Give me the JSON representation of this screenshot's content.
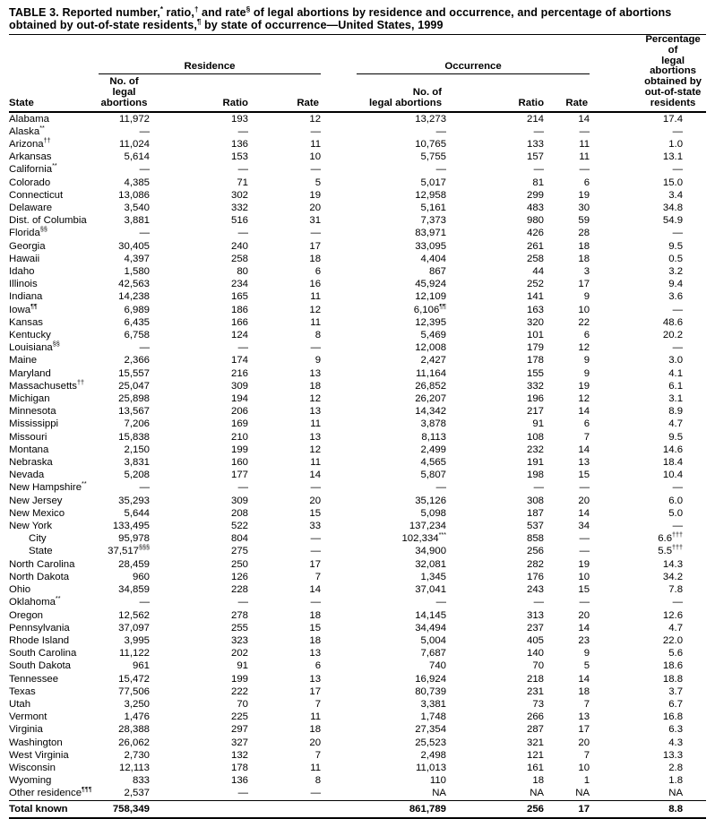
{
  "title": {
    "segments": [
      {
        "text": "TABLE 3. Reported number,"
      },
      {
        "sup": "*"
      },
      {
        "text": " ratio,"
      },
      {
        "sup": "†"
      },
      {
        "text": " and rate"
      },
      {
        "sup": "§"
      },
      {
        "text": " of legal abortions by residence and occurrence, and percentage of abortions obtained by out-of-state residents,"
      },
      {
        "sup": "¶"
      },
      {
        "text": " by state of occurrence—United States, 1999"
      }
    ]
  },
  "header": {
    "state_label": "State",
    "groups": [
      {
        "label": "Residence"
      },
      {
        "label": "Occurrence"
      }
    ],
    "sub": {
      "no": "No. of\nlegal abortions",
      "ratio": "Ratio",
      "rate": "Rate"
    },
    "pct": "Percentage of\nlegal abortions\nobtained by\nout-of-state\nresidents"
  },
  "rows": [
    {
      "state": "Alabama",
      "cells": [
        "11,972",
        "193",
        "12",
        "13,273",
        "214",
        "14",
        "17.4"
      ]
    },
    {
      "state": "Alaska",
      "state_sup": "**",
      "cells": [
        "—",
        "—",
        "—",
        "—",
        "—",
        "—",
        "—"
      ]
    },
    {
      "state": "Arizona",
      "state_sup": "††",
      "cells": [
        "11,024",
        "136",
        "11",
        "10,765",
        "133",
        "11",
        "1.0"
      ]
    },
    {
      "state": "Arkansas",
      "cells": [
        "5,614",
        "153",
        "10",
        "5,755",
        "157",
        "11",
        "13.1"
      ]
    },
    {
      "state": "California",
      "state_sup": "**",
      "cells": [
        "—",
        "—",
        "—",
        "—",
        "—",
        "—",
        "—"
      ]
    },
    {
      "state": "Colorado",
      "cells": [
        "4,385",
        "71",
        "5",
        "5,017",
        "81",
        "6",
        "15.0"
      ]
    },
    {
      "state": "Connecticut",
      "cells": [
        "13,086",
        "302",
        "19",
        "12,958",
        "299",
        "19",
        "3.4"
      ]
    },
    {
      "state": "Delaware",
      "cells": [
        "3,540",
        "332",
        "20",
        "5,161",
        "483",
        "30",
        "34.8"
      ]
    },
    {
      "state": "Dist. of Columbia",
      "cells": [
        "3,881",
        "516",
        "31",
        "7,373",
        "980",
        "59",
        "54.9"
      ]
    },
    {
      "state": "Florida",
      "state_sup": "§§",
      "cells": [
        "—",
        "—",
        "—",
        "83,971",
        "426",
        "28",
        "—"
      ]
    },
    {
      "state": "Georgia",
      "cells": [
        "30,405",
        "240",
        "17",
        "33,095",
        "261",
        "18",
        "9.5"
      ]
    },
    {
      "state": "Hawaii",
      "cells": [
        "4,397",
        "258",
        "18",
        "4,404",
        "258",
        "18",
        "0.5"
      ]
    },
    {
      "state": "Idaho",
      "cells": [
        "1,580",
        "80",
        "6",
        "867",
        "44",
        "3",
        "3.2"
      ]
    },
    {
      "state": "Illinois",
      "cells": [
        "42,563",
        "234",
        "16",
        "45,924",
        "252",
        "17",
        "9.4"
      ]
    },
    {
      "state": "Indiana",
      "cells": [
        "14,238",
        "165",
        "11",
        "12,109",
        "141",
        "9",
        "3.6"
      ]
    },
    {
      "state": "Iowa",
      "state_sup": "¶¶",
      "cells": [
        "6,989",
        "186",
        "12",
        {
          "v": "6,106",
          "sup": "¶¶"
        },
        "163",
        "10",
        "—"
      ]
    },
    {
      "state": "Kansas",
      "cells": [
        "6,435",
        "166",
        "11",
        "12,395",
        "320",
        "22",
        "48.6"
      ]
    },
    {
      "state": "Kentucky",
      "cells": [
        "6,758",
        "124",
        "8",
        "5,469",
        "101",
        "6",
        "20.2"
      ]
    },
    {
      "state": "Louisiana",
      "state_sup": "§§",
      "cells": [
        "—",
        "—",
        "—",
        "12,008",
        "179",
        "12",
        "—"
      ]
    },
    {
      "state": "Maine",
      "cells": [
        "2,366",
        "174",
        "9",
        "2,427",
        "178",
        "9",
        "3.0"
      ]
    },
    {
      "state": "Maryland",
      "cells": [
        "15,557",
        "216",
        "13",
        "11,164",
        "155",
        "9",
        "4.1"
      ]
    },
    {
      "state": "Massachusetts",
      "state_sup": "††",
      "cells": [
        "25,047",
        "309",
        "18",
        "26,852",
        "332",
        "19",
        "6.1"
      ]
    },
    {
      "state": "Michigan",
      "cells": [
        "25,898",
        "194",
        "12",
        "26,207",
        "196",
        "12",
        "3.1"
      ]
    },
    {
      "state": "Minnesota",
      "cells": [
        "13,567",
        "206",
        "13",
        "14,342",
        "217",
        "14",
        "8.9"
      ]
    },
    {
      "state": "Mississippi",
      "cells": [
        "7,206",
        "169",
        "11",
        "3,878",
        "91",
        "6",
        "4.7"
      ]
    },
    {
      "state": "Missouri",
      "cells": [
        "15,838",
        "210",
        "13",
        "8,113",
        "108",
        "7",
        "9.5"
      ]
    },
    {
      "state": "Montana",
      "cells": [
        "2,150",
        "199",
        "12",
        "2,499",
        "232",
        "14",
        "14.6"
      ]
    },
    {
      "state": "Nebraska",
      "cells": [
        "3,831",
        "160",
        "11",
        "4,565",
        "191",
        "13",
        "18.4"
      ]
    },
    {
      "state": "Nevada",
      "cells": [
        "5,208",
        "177",
        "14",
        "5,807",
        "198",
        "15",
        "10.4"
      ]
    },
    {
      "state": "New Hampshire",
      "state_sup": "**",
      "cells": [
        "—",
        "—",
        "—",
        "—",
        "—",
        "—",
        "—"
      ]
    },
    {
      "state": "New Jersey",
      "cells": [
        "35,293",
        "309",
        "20",
        "35,126",
        "308",
        "20",
        "6.0"
      ]
    },
    {
      "state": "New Mexico",
      "cells": [
        "5,644",
        "208",
        "15",
        "5,098",
        "187",
        "14",
        "5.0"
      ]
    },
    {
      "state": "New York",
      "cells": [
        "133,495",
        "522",
        "33",
        "137,234",
        "537",
        "34",
        "—"
      ]
    },
    {
      "state": "City",
      "indent": true,
      "cells": [
        "95,978",
        "804",
        "—",
        {
          "v": "102,334",
          "sup": "***"
        },
        "858",
        "—",
        {
          "v": "6.6",
          "sup": "†††"
        }
      ]
    },
    {
      "state": "State",
      "indent": true,
      "cells": [
        {
          "v": "37,517",
          "sup": "§§§"
        },
        "275",
        "—",
        "34,900",
        "256",
        "—",
        {
          "v": "5.5",
          "sup": "†††"
        }
      ]
    },
    {
      "state": "North Carolina",
      "cells": [
        "28,459",
        "250",
        "17",
        "32,081",
        "282",
        "19",
        "14.3"
      ]
    },
    {
      "state": "North Dakota",
      "cells": [
        "960",
        "126",
        "7",
        "1,345",
        "176",
        "10",
        "34.2"
      ]
    },
    {
      "state": "Ohio",
      "cells": [
        "34,859",
        "228",
        "14",
        "37,041",
        "243",
        "15",
        "7.8"
      ]
    },
    {
      "state": "Oklahoma",
      "state_sup": "**",
      "cells": [
        "—",
        "—",
        "—",
        "—",
        "—",
        "—",
        "—"
      ]
    },
    {
      "state": "Oregon",
      "cells": [
        "12,562",
        "278",
        "18",
        "14,145",
        "313",
        "20",
        "12.6"
      ]
    },
    {
      "state": "Pennsylvania",
      "cells": [
        "37,097",
        "255",
        "15",
        "34,494",
        "237",
        "14",
        "4.7"
      ]
    },
    {
      "state": "Rhode Island",
      "cells": [
        "3,995",
        "323",
        "18",
        "5,004",
        "405",
        "23",
        "22.0"
      ]
    },
    {
      "state": "South Carolina",
      "cells": [
        "11,122",
        "202",
        "13",
        "7,687",
        "140",
        "9",
        "5.6"
      ]
    },
    {
      "state": "South Dakota",
      "cells": [
        "961",
        "91",
        "6",
        "740",
        "70",
        "5",
        "18.6"
      ]
    },
    {
      "state": "Tennessee",
      "cells": [
        "15,472",
        "199",
        "13",
        "16,924",
        "218",
        "14",
        "18.8"
      ]
    },
    {
      "state": "Texas",
      "cells": [
        "77,506",
        "222",
        "17",
        "80,739",
        "231",
        "18",
        "3.7"
      ]
    },
    {
      "state": "Utah",
      "cells": [
        "3,250",
        "70",
        "7",
        "3,381",
        "73",
        "7",
        "6.7"
      ]
    },
    {
      "state": "Vermont",
      "cells": [
        "1,476",
        "225",
        "11",
        "1,748",
        "266",
        "13",
        "16.8"
      ]
    },
    {
      "state": "Virginia",
      "cells": [
        "28,388",
        "297",
        "18",
        "27,354",
        "287",
        "17",
        "6.3"
      ]
    },
    {
      "state": "Washington",
      "cells": [
        "26,062",
        "327",
        "20",
        "25,523",
        "321",
        "20",
        "4.3"
      ]
    },
    {
      "state": "West Virginia",
      "cells": [
        "2,730",
        "132",
        "7",
        "2,498",
        "121",
        "7",
        "13.3"
      ]
    },
    {
      "state": "Wisconsin",
      "cells": [
        "12,113",
        "178",
        "11",
        "11,013",
        "161",
        "10",
        "2.8"
      ]
    },
    {
      "state": "Wyoming",
      "cells": [
        "833",
        "136",
        "8",
        "110",
        "18",
        "1",
        "1.8"
      ]
    },
    {
      "state": "Other residence",
      "state_sup": "¶¶¶",
      "cells": [
        "2,537",
        "—",
        "—",
        "NA",
        "NA",
        "NA",
        "NA"
      ]
    }
  ],
  "total_row": {
    "state": "Total known",
    "cells": [
      "758,349",
      "",
      "",
      "861,789",
      "256",
      "17",
      "8.8"
    ]
  }
}
